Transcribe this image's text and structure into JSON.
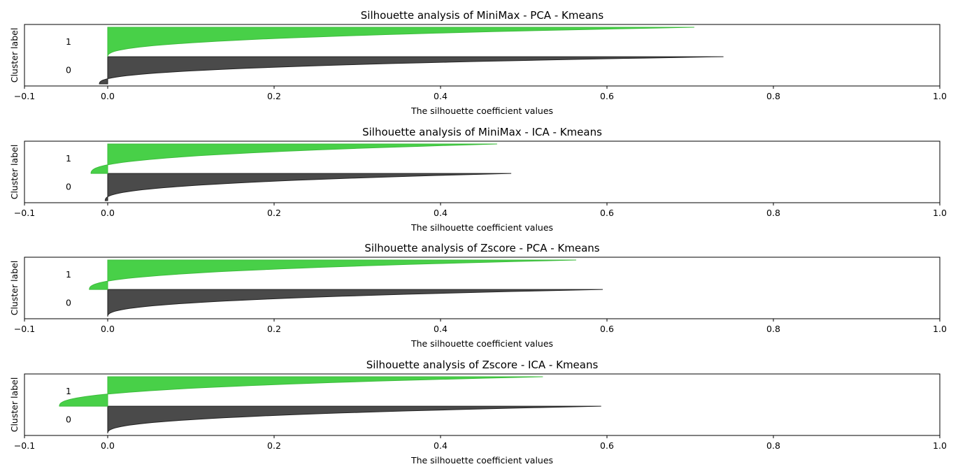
{
  "chart_data": [
    {
      "type": "area",
      "title": "Silhouette analysis of MiniMax - PCA - Kmeans",
      "xlabel": "The silhouette coefficient values",
      "ylabel": "Cluster label",
      "xlim": [
        -0.1,
        1.0
      ],
      "xticks": [
        "−0.1",
        "0.0",
        "0.2",
        "0.4",
        "0.6",
        "0.8",
        "1.0"
      ],
      "clusters": [
        {
          "label": "0",
          "color": "#4a4a4a",
          "min": -0.01,
          "max": 0.74
        },
        {
          "label": "1",
          "color": "#48d048",
          "min": 0.0,
          "max": 0.705
        }
      ]
    },
    {
      "type": "area",
      "title": "Silhouette analysis of MiniMax - ICA - Kmeans",
      "xlabel": "The silhouette coefficient values",
      "ylabel": "Cluster label",
      "xlim": [
        -0.1,
        1.0
      ],
      "xticks": [
        "−0.1",
        "0.0",
        "0.2",
        "0.4",
        "0.6",
        "0.8",
        "1.0"
      ],
      "clusters": [
        {
          "label": "0",
          "color": "#4a4a4a",
          "min": -0.003,
          "max": 0.485
        },
        {
          "label": "1",
          "color": "#48d048",
          "min": -0.02,
          "max": 0.468
        }
      ]
    },
    {
      "type": "area",
      "title": "Silhouette analysis of Zscore - PCA - Kmeans",
      "xlabel": "The silhouette coefficient values",
      "ylabel": "Cluster label",
      "xlim": [
        -0.1,
        1.0
      ],
      "xticks": [
        "−0.1",
        "0.0",
        "0.2",
        "0.4",
        "0.6",
        "0.8",
        "1.0"
      ],
      "clusters": [
        {
          "label": "0",
          "color": "#4a4a4a",
          "min": 0.0,
          "max": 0.595
        },
        {
          "label": "1",
          "color": "#48d048",
          "min": -0.022,
          "max": 0.563
        }
      ]
    },
    {
      "type": "area",
      "title": "Silhouette analysis of Zscore - ICA - Kmeans",
      "xlabel": "The silhouette coefficient values",
      "ylabel": "Cluster label",
      "xlim": [
        -0.1,
        1.0
      ],
      "xticks": [
        "−0.1",
        "0.0",
        "0.2",
        "0.4",
        "0.6",
        "0.8",
        "1.0"
      ],
      "clusters": [
        {
          "label": "0",
          "color": "#4a4a4a",
          "min": 0.0,
          "max": 0.593
        },
        {
          "label": "1",
          "color": "#48d048",
          "min": -0.058,
          "max": 0.523
        }
      ]
    }
  ]
}
